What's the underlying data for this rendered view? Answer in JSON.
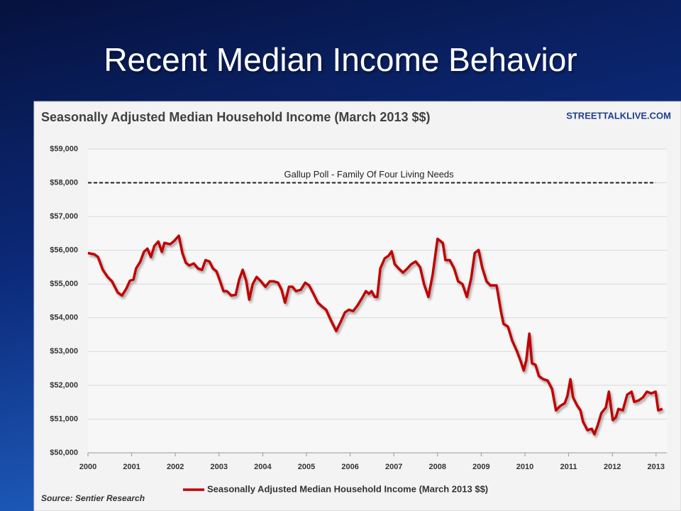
{
  "slide_title": "Recent Median Income Behavior",
  "chart_data": {
    "type": "line",
    "title": "Seasonally Adjusted Median Household Income (March 2013 $$)",
    "watermark": "STREETTALKLIVE.COM",
    "source": "Source: Sentier Research",
    "reference_line": {
      "value": 58000,
      "label": "Gallup Poll - Family Of Four Living Needs"
    },
    "grid": true,
    "legend": "bottom",
    "xlim": [
      2000,
      2013.25
    ],
    "ylim": [
      50000,
      59000
    ],
    "xticks": [
      2000,
      2001,
      2002,
      2003,
      2004,
      2005,
      2006,
      2007,
      2008,
      2009,
      2010,
      2011,
      2012,
      2013
    ],
    "yticks": [
      {
        "value": 50000,
        "label": "$50,000"
      },
      {
        "value": 51000,
        "label": "$51,000"
      },
      {
        "value": 52000,
        "label": "$52,000"
      },
      {
        "value": 53000,
        "label": "$53,000"
      },
      {
        "value": 54000,
        "label": "$54,000"
      },
      {
        "value": 55000,
        "label": "$55,000"
      },
      {
        "value": 56000,
        "label": "$56,000"
      },
      {
        "value": 57000,
        "label": "$57,000"
      },
      {
        "value": 58000,
        "label": "$58,000"
      },
      {
        "value": 59000,
        "label": "$59,000"
      }
    ],
    "x": [
      2000.0,
      2000.15,
      2000.23,
      2000.34,
      2000.45,
      2000.55,
      2000.68,
      2000.78,
      2000.88,
      2000.96,
      2001.04,
      2001.1,
      2001.2,
      2001.28,
      2001.36,
      2001.44,
      2001.52,
      2001.61,
      2001.69,
      2001.75,
      2001.88,
      2001.96,
      2002.08,
      2002.16,
      2002.24,
      2002.32,
      2002.42,
      2002.52,
      2002.61,
      2002.69,
      2002.78,
      2002.86,
      2002.94,
      2003.02,
      2003.1,
      2003.18,
      2003.28,
      2003.38,
      2003.46,
      2003.54,
      2003.62,
      2003.69,
      2003.77,
      2003.86,
      2003.96,
      2004.06,
      2004.16,
      2004.25,
      2004.35,
      2004.43,
      2004.51,
      2004.6,
      2004.68,
      2004.76,
      2004.87,
      2004.97,
      2005.06,
      2005.16,
      2005.26,
      2005.36,
      2005.45,
      2005.55,
      2005.68,
      2005.78,
      2005.88,
      2005.97,
      2006.07,
      2006.17,
      2006.27,
      2006.36,
      2006.43,
      2006.49,
      2006.56,
      2006.62,
      2006.69,
      2006.79,
      2006.88,
      2006.95,
      2007.02,
      2007.11,
      2007.21,
      2007.31,
      2007.4,
      2007.5,
      2007.6,
      2007.69,
      2007.79,
      2007.89,
      2008.0,
      2008.12,
      2008.18,
      2008.28,
      2008.38,
      2008.47,
      2008.57,
      2008.67,
      2008.77,
      2008.85,
      2008.94,
      2009.02,
      2009.12,
      2009.21,
      2009.35,
      2009.45,
      2009.51,
      2009.61,
      2009.71,
      2009.81,
      2009.9,
      2009.97,
      2010.03,
      2010.1,
      2010.16,
      2010.24,
      2010.32,
      2010.42,
      2010.52,
      2010.62,
      2010.71,
      2010.81,
      2010.91,
      2010.97,
      2011.04,
      2011.1,
      2011.2,
      2011.27,
      2011.33,
      2011.43,
      2011.53,
      2011.59,
      2011.66,
      2011.75,
      2011.85,
      2011.92,
      2012.01,
      2012.08,
      2012.14,
      2012.24,
      2012.34,
      2012.44,
      2012.5,
      2012.6,
      2012.7,
      2012.79,
      2012.89,
      2012.99,
      2013.05,
      2013.15
    ],
    "series": [
      {
        "name": "Seasonally Adjusted Median Household Income (March 2013 $$)",
        "color": "#c00000",
        "values": [
          55920,
          55880,
          55800,
          55420,
          55210,
          55080,
          54750,
          54660,
          54870,
          55100,
          55130,
          55460,
          55670,
          55950,
          56050,
          55800,
          56130,
          56260,
          55950,
          56220,
          56180,
          56260,
          56430,
          55920,
          55630,
          55550,
          55610,
          55460,
          55420,
          55710,
          55670,
          55460,
          55380,
          55100,
          54790,
          54790,
          54660,
          54680,
          55130,
          55420,
          55100,
          54540,
          55000,
          55210,
          55080,
          54920,
          55080,
          55080,
          55040,
          54830,
          54450,
          54920,
          54920,
          54790,
          54830,
          55040,
          54960,
          54710,
          54450,
          54330,
          54240,
          53950,
          53610,
          53870,
          54160,
          54240,
          54200,
          54370,
          54580,
          54790,
          54710,
          54790,
          54620,
          54620,
          55460,
          55760,
          55840,
          55970,
          55590,
          55460,
          55340,
          55460,
          55590,
          55670,
          55500,
          55000,
          54620,
          55290,
          56340,
          56220,
          55710,
          55710,
          55460,
          55080,
          55000,
          54620,
          55170,
          55920,
          56010,
          55500,
          55080,
          54960,
          54960,
          54200,
          53820,
          53740,
          53320,
          53030,
          52730,
          52440,
          52730,
          53530,
          52650,
          52610,
          52270,
          52180,
          52140,
          51890,
          51260,
          51390,
          51470,
          51680,
          52180,
          51640,
          51390,
          51260,
          50920,
          50670,
          50710,
          50550,
          50800,
          51180,
          51340,
          51810,
          50970,
          51050,
          51300,
          51260,
          51720,
          51810,
          51510,
          51550,
          51640,
          51810,
          51760,
          51810,
          51260,
          51300
        ]
      }
    ]
  }
}
